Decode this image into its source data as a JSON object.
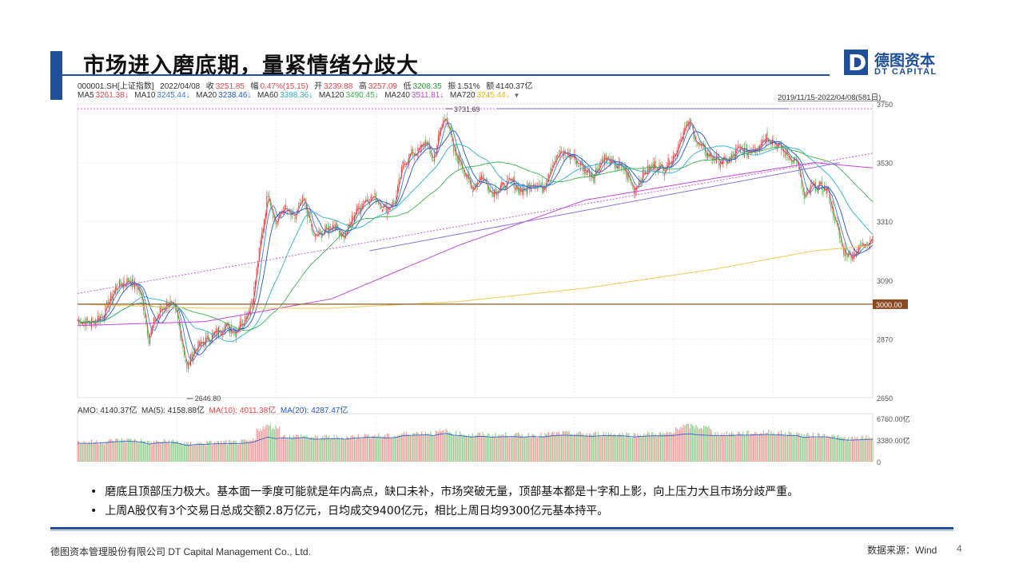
{
  "page": {
    "title": "市场进入磨底期，量紧情绪分歧大",
    "page_number": "4",
    "colors": {
      "accent": "#1f4e9a",
      "up": "#e8474b",
      "down": "#5cb85c"
    }
  },
  "logo": {
    "cn": "德图资本",
    "en": "DT CAPITAL",
    "mark": "D"
  },
  "infobar": {
    "code": "000001.SH[上证指数]",
    "date": "2022/04/08",
    "close_label": "收",
    "close": "3251.85",
    "change_label": "幅",
    "change": "0.47%(15.15)",
    "open_label": "开",
    "open": "3239.88",
    "high_label": "高",
    "high": "3257.09",
    "low_label": "低",
    "low": "3208.35",
    "amp_label": "振",
    "amp": "1.51%",
    "amount_label": "额",
    "amount": "4140.37亿"
  },
  "ma_bar": [
    {
      "label": "MA5",
      "value": "3261.38↓",
      "color": "#e8474b"
    },
    {
      "label": "MA10",
      "value": "3245.44↓",
      "color": "#3a7be0"
    },
    {
      "label": "MA20",
      "value": "3238.46↓",
      "color": "#2456c8"
    },
    {
      "label": "MA60",
      "value": "3398.36↓",
      "color": "#27b3c9"
    },
    {
      "label": "MA120",
      "value": "3490.45↓",
      "color": "#39b24a"
    },
    {
      "label": "MA240",
      "value": "3511.81↓",
      "color": "#c444d8"
    },
    {
      "label": "MA720",
      "value": "3245.44↓",
      "color": "#f0b400"
    }
  ],
  "date_range": "2019/11/15-2022/04/08(581日)",
  "amo_bar": [
    {
      "label": "AMO: 4140.37亿",
      "color": "#333333"
    },
    {
      "label": "MA(5): 4158.88亿",
      "color": "#333333"
    },
    {
      "label": "MA(10): 4011.38亿",
      "color": "#e8474b"
    },
    {
      "label": "MA(20): 4287.47亿",
      "color": "#2456c8"
    }
  ],
  "chart_data": {
    "type": "line",
    "subtype": "candlestick-with-volume",
    "price_axis": {
      "ticks": [
        2650,
        2870,
        3090,
        3310,
        3530,
        3750
      ],
      "range": [
        2650,
        3750
      ]
    },
    "volume_axis": {
      "ticks": [
        "6760.00亿",
        "3380.00亿",
        "0"
      ],
      "range": [
        0,
        6760
      ]
    },
    "annotations": {
      "high_label": "3731.69",
      "high_value": 3731.69,
      "low_label": "2646.80",
      "low_value": 2646.8,
      "level_label": "3000.00",
      "level_value": 3000
    },
    "close_path": [
      [
        0,
        2940
      ],
      [
        10,
        2930
      ],
      [
        20,
        2960
      ],
      [
        30,
        3060
      ],
      [
        40,
        3090
      ],
      [
        48,
        3060
      ],
      [
        52,
        2990
      ],
      [
        56,
        2870
      ],
      [
        60,
        2930
      ],
      [
        66,
        2980
      ],
      [
        72,
        3010
      ],
      [
        78,
        2960
      ],
      [
        82,
        2870
      ],
      [
        86,
        2760
      ],
      [
        92,
        2830
      ],
      [
        100,
        2860
      ],
      [
        108,
        2890
      ],
      [
        116,
        2920
      ],
      [
        124,
        2900
      ],
      [
        132,
        2950
      ],
      [
        138,
        3020
      ],
      [
        144,
        3230
      ],
      [
        150,
        3420
      ],
      [
        156,
        3300
      ],
      [
        162,
        3360
      ],
      [
        170,
        3320
      ],
      [
        178,
        3390
      ],
      [
        186,
        3250
      ],
      [
        194,
        3270
      ],
      [
        202,
        3300
      ],
      [
        210,
        3250
      ],
      [
        218,
        3340
      ],
      [
        226,
        3390
      ],
      [
        234,
        3400
      ],
      [
        242,
        3360
      ],
      [
        250,
        3380
      ],
      [
        256,
        3520
      ],
      [
        262,
        3560
      ],
      [
        268,
        3570
      ],
      [
        274,
        3610
      ],
      [
        280,
        3540
      ],
      [
        286,
        3660
      ],
      [
        290,
        3710
      ],
      [
        296,
        3570
      ],
      [
        302,
        3530
      ],
      [
        310,
        3430
      ],
      [
        318,
        3480
      ],
      [
        326,
        3420
      ],
      [
        334,
        3440
      ],
      [
        342,
        3460
      ],
      [
        350,
        3420
      ],
      [
        358,
        3460
      ],
      [
        366,
        3430
      ],
      [
        374,
        3530
      ],
      [
        382,
        3570
      ],
      [
        390,
        3550
      ],
      [
        398,
        3510
      ],
      [
        406,
        3480
      ],
      [
        414,
        3550
      ],
      [
        422,
        3520
      ],
      [
        430,
        3510
      ],
      [
        438,
        3430
      ],
      [
        446,
        3490
      ],
      [
        454,
        3520
      ],
      [
        462,
        3510
      ],
      [
        470,
        3560
      ],
      [
        476,
        3640
      ],
      [
        482,
        3680
      ],
      [
        488,
        3600
      ],
      [
        496,
        3560
      ],
      [
        504,
        3540
      ],
      [
        512,
        3530
      ],
      [
        520,
        3580
      ],
      [
        528,
        3570
      ],
      [
        536,
        3600
      ],
      [
        542,
        3630
      ],
      [
        548,
        3610
      ],
      [
        554,
        3580
      ],
      [
        560,
        3550
      ],
      [
        566,
        3540
      ],
      [
        572,
        3390
      ],
      [
        578,
        3440
      ],
      [
        584,
        3440
      ],
      [
        590,
        3430
      ],
      [
        596,
        3320
      ],
      [
        602,
        3210
      ],
      [
        608,
        3180
      ],
      [
        614,
        3200
      ],
      [
        620,
        3230
      ],
      [
        626,
        3251.85
      ]
    ],
    "ma_paths": [
      {
        "name": "MA5",
        "color": "#e8474b",
        "shift": 0,
        "smooth": 3
      },
      {
        "name": "MA10",
        "color": "#3a7be0",
        "shift": 0,
        "smooth": 7
      },
      {
        "name": "MA20",
        "color": "#2456c8",
        "shift": 0,
        "smooth": 14
      },
      {
        "name": "MA60",
        "color": "#27b3c9",
        "shift": 0,
        "smooth": 40
      },
      {
        "name": "MA120",
        "color": "#39b24a",
        "shift": 0,
        "smooth": 80
      }
    ],
    "ma240_path": [
      [
        0,
        2920
      ],
      [
        100,
        2935
      ],
      [
        200,
        3020
      ],
      [
        300,
        3220
      ],
      [
        400,
        3390
      ],
      [
        500,
        3470
      ],
      [
        580,
        3530
      ],
      [
        626,
        3510
      ]
    ],
    "ma720_path": [
      [
        0,
        3000
      ],
      [
        100,
        2985
      ],
      [
        200,
        2985
      ],
      [
        300,
        3010
      ],
      [
        400,
        3060
      ],
      [
        500,
        3130
      ],
      [
        580,
        3200
      ],
      [
        626,
        3220
      ]
    ],
    "trendlines": [
      {
        "style": "dotted",
        "color": "#c060d0",
        "from": [
          0,
          3040
        ],
        "to": [
          626,
          3565
        ]
      },
      {
        "style": "solid",
        "color": "#8d6fe0",
        "from": [
          230,
          3200
        ],
        "to": [
          600,
          3530
        ]
      },
      {
        "style": "dotted",
        "color": "#d070e0",
        "from": [
          0,
          3731.69
        ],
        "to": [
          626,
          3731.69
        ]
      },
      {
        "style": "solid",
        "color": "#8d6fe0",
        "from": [
          330,
          3731.69
        ],
        "to": [
          560,
          3731.69
        ]
      }
    ]
  },
  "bullets": [
    "磨底且顶部压力极大。基本面一季度可能就是年内高点，缺口未补，市场突破无量，顶部基本都是十字和上影，向上压力大且市场分歧严重。",
    "上周A股仅有3个交易日总成交额2.8万亿元，日均成交9400亿元，相比上周日均9300亿元基本持平。"
  ],
  "footer": {
    "company": "德图资本管理股份有限公司  DT Capital Management  Co., Ltd.",
    "source": "数据来源：Wind"
  }
}
